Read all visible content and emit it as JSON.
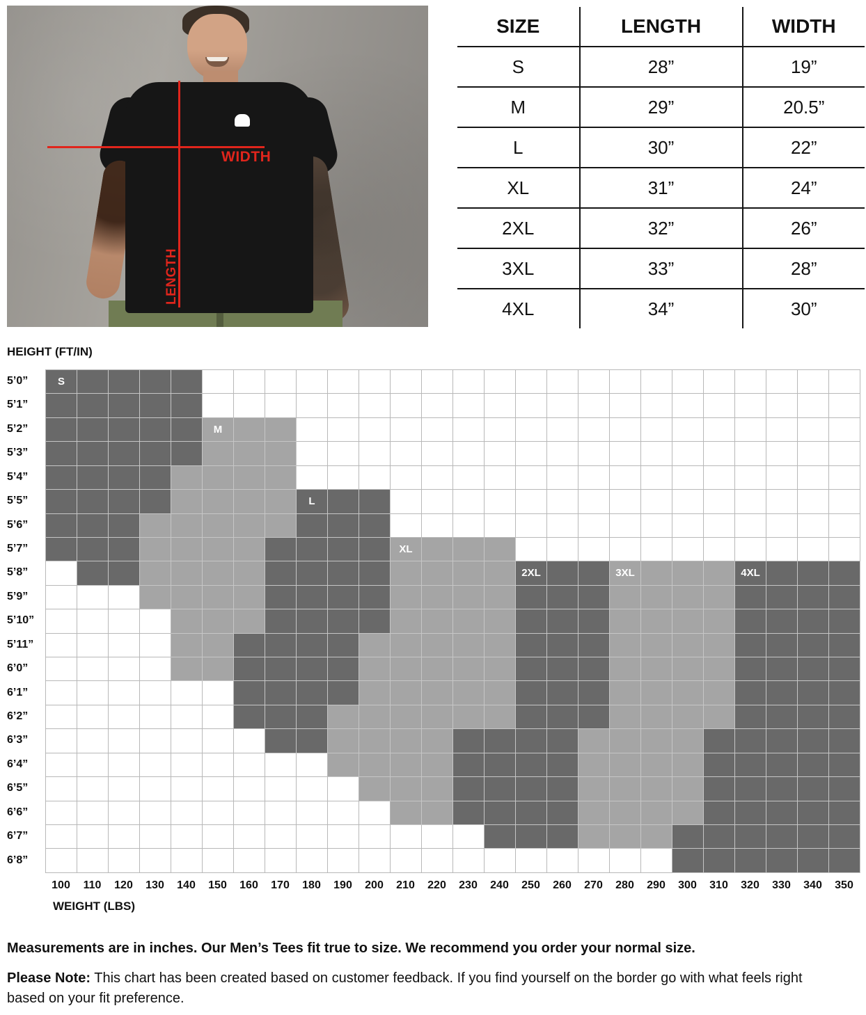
{
  "photo": {
    "width_label": "WIDTH",
    "length_label": "LENGTH",
    "accent_red": "#e0251c"
  },
  "size_table": {
    "headers": [
      "SIZE",
      "LENGTH",
      "WIDTH"
    ],
    "rows": [
      [
        "S",
        "28”",
        "19”"
      ],
      [
        "M",
        "29”",
        "20.5”"
      ],
      [
        "L",
        "30”",
        "22”"
      ],
      [
        "XL",
        "31”",
        "24”"
      ],
      [
        "2XL",
        "32”",
        "26”"
      ],
      [
        "3XL",
        "33”",
        "28”"
      ],
      [
        "4XL",
        "34”",
        "30”"
      ]
    ]
  },
  "notes": {
    "line1": "Measurements are in inches. Our Men’s Tees fit true to size. We recommend you order your normal size.",
    "line2_bold": "Please Note:",
    "line2_rest": " This chart has been created based on customer feedback. If you find yourself on the border go with what feels right based on your fit preference."
  },
  "chart_data": [
    {
      "type": "table",
      "title": "Men's tee measurements (inches)",
      "columns": [
        "SIZE",
        "LENGTH",
        "WIDTH"
      ],
      "rows": [
        [
          "S",
          "28",
          "19"
        ],
        [
          "M",
          "29",
          "20.5"
        ],
        [
          "L",
          "30",
          "22"
        ],
        [
          "XL",
          "31",
          "24"
        ],
        [
          "2XL",
          "32",
          "26"
        ],
        [
          "3XL",
          "33",
          "28"
        ],
        [
          "4XL",
          "34",
          "30"
        ]
      ]
    },
    {
      "type": "heatmap",
      "title": "Recommended size by height and weight",
      "xlabel": "WEIGHT (LBS)",
      "ylabel": "HEIGHT (FT/IN)",
      "x": [
        100,
        110,
        120,
        130,
        140,
        150,
        160,
        170,
        180,
        190,
        200,
        210,
        220,
        230,
        240,
        250,
        260,
        270,
        280,
        290,
        300,
        310,
        320,
        330,
        340,
        350
      ],
      "shade_colors": {
        "dark": "#696969",
        "medium": "#a5a5a5",
        "empty": "#ffffff"
      },
      "size_shades": {
        "S": "dark",
        "M": "medium",
        "L": "dark",
        "XL": "medium",
        "2XL": "dark",
        "3XL": "medium",
        "4XL": "dark"
      },
      "rows": [
        {
          "height": "5’0”",
          "runs": [
            [
              "S",
              100,
              140
            ]
          ]
        },
        {
          "height": "5’1”",
          "runs": [
            [
              "S",
              100,
              140
            ]
          ]
        },
        {
          "height": "5’2”",
          "runs": [
            [
              "S",
              100,
              140
            ],
            [
              "M",
              150,
              170
            ]
          ]
        },
        {
          "height": "5’3”",
          "runs": [
            [
              "S",
              100,
              140
            ],
            [
              "M",
              150,
              170
            ]
          ]
        },
        {
          "height": "5’4”",
          "runs": [
            [
              "S",
              100,
              130
            ],
            [
              "M",
              140,
              170
            ]
          ]
        },
        {
          "height": "5’5”",
          "runs": [
            [
              "S",
              100,
              130
            ],
            [
              "M",
              140,
              170
            ],
            [
              "L",
              180,
              200
            ]
          ]
        },
        {
          "height": "5’6”",
          "runs": [
            [
              "S",
              100,
              120
            ],
            [
              "M",
              130,
              170
            ],
            [
              "L",
              180,
              200
            ]
          ]
        },
        {
          "height": "5’7”",
          "runs": [
            [
              "S",
              100,
              120
            ],
            [
              "M",
              130,
              160
            ],
            [
              "L",
              170,
              200
            ],
            [
              "XL",
              210,
              240
            ]
          ]
        },
        {
          "height": "5’8”",
          "runs": [
            [
              "S",
              110,
              120
            ],
            [
              "M",
              130,
              160
            ],
            [
              "L",
              170,
              200
            ],
            [
              "XL",
              210,
              240
            ],
            [
              "2XL",
              250,
              270
            ],
            [
              "3XL",
              280,
              310
            ],
            [
              "4XL",
              320,
              350
            ]
          ]
        },
        {
          "height": "5’9”",
          "runs": [
            [
              "M",
              130,
              160
            ],
            [
              "L",
              170,
              200
            ],
            [
              "XL",
              210,
              240
            ],
            [
              "2XL",
              250,
              270
            ],
            [
              "3XL",
              280,
              310
            ],
            [
              "4XL",
              320,
              350
            ]
          ]
        },
        {
          "height": "5’10”",
          "runs": [
            [
              "M",
              140,
              160
            ],
            [
              "L",
              170,
              200
            ],
            [
              "XL",
              210,
              240
            ],
            [
              "2XL",
              250,
              270
            ],
            [
              "3XL",
              280,
              310
            ],
            [
              "4XL",
              320,
              350
            ]
          ]
        },
        {
          "height": "5’11”",
          "runs": [
            [
              "M",
              140,
              150
            ],
            [
              "L",
              160,
              190
            ],
            [
              "XL",
              200,
              240
            ],
            [
              "2XL",
              250,
              270
            ],
            [
              "3XL",
              280,
              310
            ],
            [
              "4XL",
              320,
              350
            ]
          ]
        },
        {
          "height": "6’0”",
          "runs": [
            [
              "M",
              140,
              150
            ],
            [
              "L",
              160,
              190
            ],
            [
              "XL",
              200,
              240
            ],
            [
              "2XL",
              250,
              270
            ],
            [
              "3XL",
              280,
              310
            ],
            [
              "4XL",
              320,
              350
            ]
          ]
        },
        {
          "height": "6’1”",
          "runs": [
            [
              "L",
              160,
              190
            ],
            [
              "XL",
              200,
              240
            ],
            [
              "2XL",
              250,
              270
            ],
            [
              "3XL",
              280,
              310
            ],
            [
              "4XL",
              320,
              350
            ]
          ]
        },
        {
          "height": "6’2”",
          "runs": [
            [
              "L",
              160,
              180
            ],
            [
              "XL",
              190,
              240
            ],
            [
              "2XL",
              250,
              270
            ],
            [
              "3XL",
              280,
              310
            ],
            [
              "4XL",
              320,
              350
            ]
          ]
        },
        {
          "height": "6’3”",
          "runs": [
            [
              "L",
              170,
              180
            ],
            [
              "XL",
              190,
              220
            ],
            [
              "2XL",
              230,
              260
            ],
            [
              "3XL",
              270,
              300
            ],
            [
              "4XL",
              310,
              350
            ]
          ]
        },
        {
          "height": "6’4”",
          "runs": [
            [
              "XL",
              190,
              220
            ],
            [
              "2XL",
              230,
              260
            ],
            [
              "3XL",
              270,
              300
            ],
            [
              "4XL",
              310,
              350
            ]
          ]
        },
        {
          "height": "6’5”",
          "runs": [
            [
              "XL",
              200,
              220
            ],
            [
              "2XL",
              230,
              260
            ],
            [
              "3XL",
              270,
              300
            ],
            [
              "4XL",
              310,
              350
            ]
          ]
        },
        {
          "height": "6’6”",
          "runs": [
            [
              "XL",
              210,
              220
            ],
            [
              "2XL",
              230,
              260
            ],
            [
              "3XL",
              270,
              300
            ],
            [
              "4XL",
              310,
              350
            ]
          ]
        },
        {
          "height": "6’7”",
          "runs": [
            [
              "2XL",
              240,
              260
            ],
            [
              "3XL",
              270,
              290
            ],
            [
              "4XL",
              300,
              350
            ]
          ]
        },
        {
          "height": "6’8”",
          "runs": [
            [
              "4XL",
              300,
              350
            ]
          ]
        }
      ],
      "size_labels": [
        {
          "size": "S",
          "height": "5’0”",
          "weight": 100
        },
        {
          "size": "M",
          "height": "5’2”",
          "weight": 150
        },
        {
          "size": "L",
          "height": "5’5”",
          "weight": 180
        },
        {
          "size": "XL",
          "height": "5’7”",
          "weight": 210
        },
        {
          "size": "2XL",
          "height": "5’8”",
          "weight": 250
        },
        {
          "size": "3XL",
          "height": "5’8”",
          "weight": 280
        },
        {
          "size": "4XL",
          "height": "5’8”",
          "weight": 320
        }
      ]
    }
  ]
}
